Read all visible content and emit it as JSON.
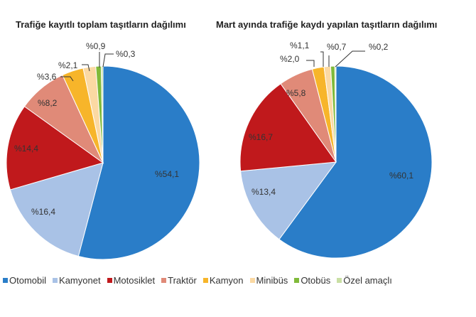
{
  "chart_data": [
    {
      "type": "pie",
      "title": "Trafiğe kayıtlı toplam taşıtların dağılımı",
      "categories": [
        "Otomobil",
        "Kamyonet",
        "Motosiklet",
        "Traktör",
        "Kamyon",
        "Minibüs",
        "Otobüs",
        "Özel amaçlı"
      ],
      "values": [
        54.1,
        16.4,
        14.4,
        8.2,
        3.6,
        2.1,
        0.9,
        0.3
      ],
      "labels": [
        "%54,1",
        "%16,4",
        "%14,4",
        "%8,2",
        "%3,6",
        "%2,1",
        "%0,9",
        "%0,3"
      ]
    },
    {
      "type": "pie",
      "title": "Mart ayında trafiğe kaydı yapılan taşıtların dağılımı",
      "categories": [
        "Otomobil",
        "Kamyonet",
        "Motosiklet",
        "Traktör",
        "Kamyon",
        "Minibüs",
        "Otobüs",
        "Özel amaçlı"
      ],
      "values": [
        60.1,
        13.4,
        16.7,
        5.8,
        2.0,
        1.1,
        0.7,
        0.2
      ],
      "labels": [
        "%60,1",
        "%13,4",
        "%16,7",
        "%5,8",
        "%2,0",
        "%1,1",
        "%0,7",
        "%0,2"
      ]
    }
  ],
  "titles": {
    "left": "Trafiğe kayıtlı toplam taşıtların dağılımı",
    "right": "Mart ayında trafiğe kaydı yapılan taşıtların dağılımı"
  },
  "colors": [
    "#2a7dc8",
    "#a9c2e6",
    "#c0191c",
    "#e08a78",
    "#f7b52a",
    "#fbd9a3",
    "#80ba3a",
    "#c9dfa4"
  ],
  "legend": [
    {
      "label": "Otomobil",
      "color": "#2a7dc8"
    },
    {
      "label": "Kamyonet",
      "color": "#a9c2e6"
    },
    {
      "label": "Motosiklet",
      "color": "#c0191c"
    },
    {
      "label": "Traktör",
      "color": "#e08a78"
    },
    {
      "label": "Kamyon",
      "color": "#f7b52a"
    },
    {
      "label": "Minibüs",
      "color": "#fbd9a3"
    },
    {
      "label": "Otobüs",
      "color": "#80ba3a"
    },
    {
      "label": "Özel amaçlı",
      "color": "#c9dfa4"
    }
  ]
}
